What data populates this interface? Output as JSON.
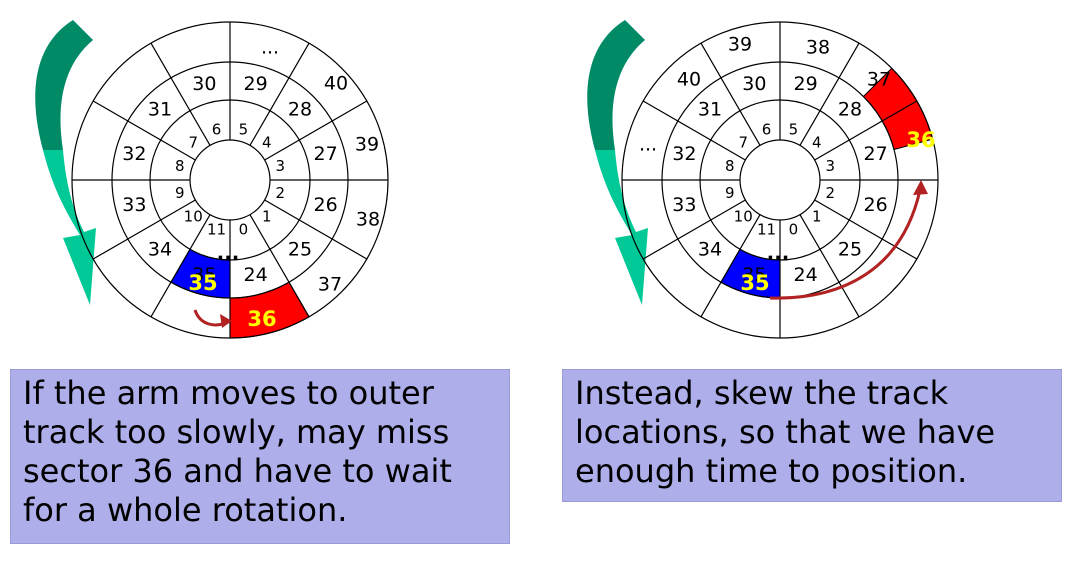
{
  "left": {
    "track_inner": [
      "0",
      "1",
      "2",
      "3",
      "4",
      "5",
      "6",
      "7",
      "8",
      "9",
      "10",
      "11"
    ],
    "track_middle": [
      "24",
      "25",
      "26",
      "27",
      "28",
      "29",
      "30",
      "31",
      "32",
      "33",
      "34",
      "35"
    ],
    "track_outer_labels": [
      "36",
      "37",
      "38",
      "39",
      "40",
      "..."
    ],
    "gap_mark": "...",
    "highlight_blue": "35",
    "highlight_red": "36",
    "caption_lines": [
      "If the arm moves to outer",
      "track too slowly, may miss",
      "sector 36 and have to wait",
      "for a whole rotation."
    ]
  },
  "right": {
    "track_inner": [
      "0",
      "1",
      "2",
      "3",
      "4",
      "5",
      "6",
      "7",
      "8",
      "9",
      "10",
      "11"
    ],
    "track_middle": [
      "24",
      "25",
      "26",
      "27",
      "28",
      "29",
      "30",
      "31",
      "32",
      "33",
      "34",
      "35"
    ],
    "track_outer_labels": [
      "36",
      "37",
      "38",
      "39",
      "40",
      "..."
    ],
    "gap_mark": "...",
    "highlight_blue": "35",
    "highlight_red": "36",
    "caption_lines": [
      "Instead, skew the track",
      "locations, so that we have",
      "enough time to position."
    ]
  },
  "colors": {
    "blue_sector": "#0000ff",
    "red_sector": "#ff0000",
    "highlight_text": "#ffff00",
    "arrow": "#b22222",
    "rotation_arrow_top": "#008a66",
    "rotation_arrow_bottom": "#00c896",
    "caption_bg": "#aeaeea"
  }
}
